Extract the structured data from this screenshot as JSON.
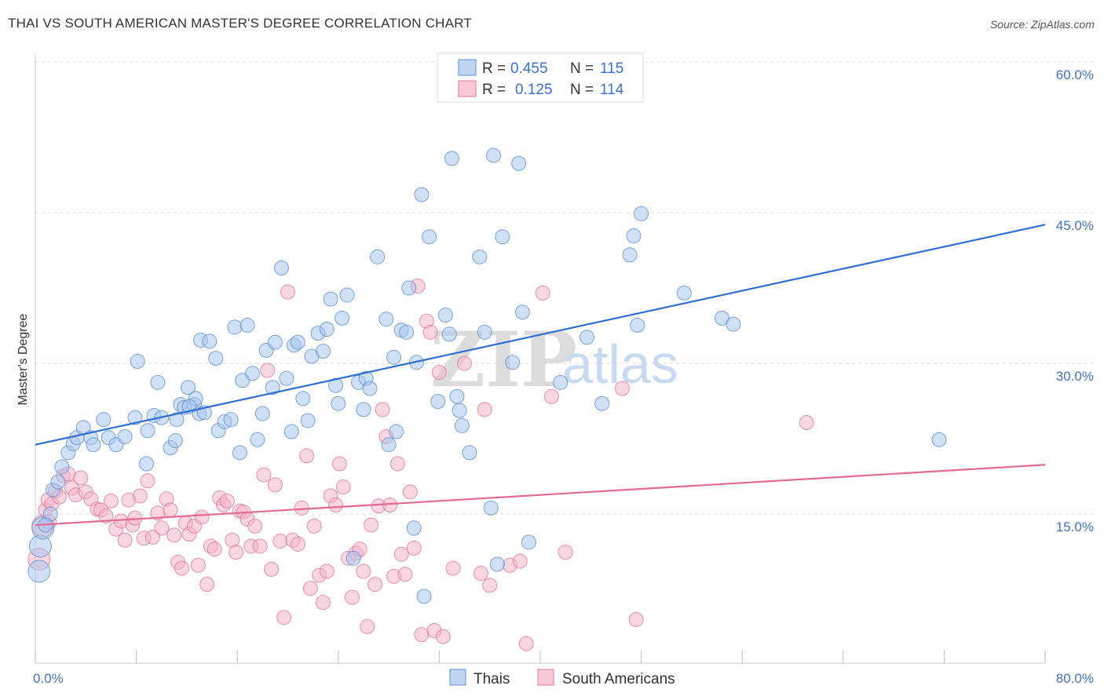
{
  "header": {
    "title": "THAI VS SOUTH AMERICAN MASTER'S DEGREE CORRELATION CHART",
    "source": "Source: ZipAtlas.com"
  },
  "watermark": {
    "zip": "ZIP",
    "atlas": "atlas"
  },
  "legend": {
    "r_label": "R =",
    "n_label": "N =",
    "rows": [
      {
        "r": "0.455",
        "n": "115",
        "color": "#a9c7ee"
      },
      {
        "r": "0.125",
        "n": "114",
        "color": "#f5b5c8"
      }
    ]
  },
  "bottom_legend": [
    "Thais",
    "South Americans"
  ],
  "colors": {
    "thai_fill": "#a9c7ee",
    "thai_stroke": "#5b8fd6",
    "thai_line": "#2e6fd1",
    "sa_fill": "#f5b5c8",
    "sa_stroke": "#e07898",
    "sa_line": "#e36a95",
    "grid": "#d8d8d8",
    "axis_text": "#4472c4"
  },
  "chart_data": {
    "type": "scatter",
    "title": "THAI VS SOUTH AMERICAN MASTER'S DEGREE CORRELATION CHART",
    "xlabel": "",
    "ylabel": "Master's Degree",
    "xlim": [
      0,
      80
    ],
    "ylim": [
      0,
      62
    ],
    "x_ticks_labels": [
      "0.0%",
      "80.0%"
    ],
    "y_ticks": [
      15,
      30,
      45,
      60
    ],
    "y_tick_labels": [
      "15.0%",
      "30.0%",
      "45.0%",
      "60.0%"
    ],
    "grid": true,
    "legend_position": "top-center",
    "series": [
      {
        "name": "Thais",
        "r": 0.455,
        "n": 115,
        "trend": {
          "x": [
            0,
            80
          ],
          "y": [
            21.9,
            43.8
          ]
        },
        "points": [
          [
            0.3,
            9.3
          ],
          [
            0.4,
            11.8
          ],
          [
            0.6,
            13.6
          ],
          [
            1.2,
            15.0
          ],
          [
            1.4,
            17.4
          ],
          [
            1.8,
            18.2
          ],
          [
            2.1,
            19.7
          ],
          [
            2.6,
            21.1
          ],
          [
            3.0,
            22.0
          ],
          [
            3.3,
            22.6
          ],
          [
            3.8,
            23.6
          ],
          [
            4.4,
            22.6
          ],
          [
            4.6,
            21.9
          ],
          [
            5.4,
            24.4
          ],
          [
            5.8,
            22.6
          ],
          [
            6.4,
            21.9
          ],
          [
            7.1,
            22.7
          ],
          [
            7.9,
            24.6
          ],
          [
            8.1,
            30.2
          ],
          [
            8.8,
            20.0
          ],
          [
            8.9,
            23.3
          ],
          [
            9.4,
            24.8
          ],
          [
            9.7,
            28.1
          ],
          [
            10.0,
            24.6
          ],
          [
            10.7,
            21.6
          ],
          [
            11.1,
            22.3
          ],
          [
            11.2,
            24.4
          ],
          [
            11.5,
            25.9
          ],
          [
            11.8,
            25.6
          ],
          [
            12.1,
            27.6
          ],
          [
            12.6,
            25.9
          ],
          [
            12.7,
            26.5
          ],
          [
            12.2,
            25.7
          ],
          [
            13.0,
            25.0
          ],
          [
            13.1,
            32.3
          ],
          [
            13.4,
            25.1
          ],
          [
            13.8,
            32.2
          ],
          [
            14.3,
            30.5
          ],
          [
            14.5,
            23.3
          ],
          [
            15.0,
            24.2
          ],
          [
            15.5,
            24.4
          ],
          [
            15.8,
            33.6
          ],
          [
            16.2,
            21.1
          ],
          [
            16.4,
            28.3
          ],
          [
            16.8,
            33.8
          ],
          [
            17.2,
            29.0
          ],
          [
            17.6,
            22.4
          ],
          [
            18.0,
            25.0
          ],
          [
            18.3,
            31.3
          ],
          [
            18.8,
            27.6
          ],
          [
            19.0,
            32.1
          ],
          [
            19.5,
            39.5
          ],
          [
            19.9,
            28.5
          ],
          [
            20.3,
            23.2
          ],
          [
            20.5,
            31.8
          ],
          [
            20.8,
            32.1
          ],
          [
            21.2,
            26.5
          ],
          [
            21.6,
            24.3
          ],
          [
            21.9,
            30.7
          ],
          [
            22.4,
            33.0
          ],
          [
            22.8,
            31.2
          ],
          [
            23.1,
            33.4
          ],
          [
            23.4,
            36.4
          ],
          [
            23.8,
            27.8
          ],
          [
            24.0,
            26.0
          ],
          [
            24.3,
            34.5
          ],
          [
            24.7,
            36.8
          ],
          [
            25.2,
            10.6
          ],
          [
            25.6,
            28.1
          ],
          [
            26.0,
            25.4
          ],
          [
            26.2,
            28.5
          ],
          [
            26.5,
            27.5
          ],
          [
            27.1,
            40.6
          ],
          [
            27.8,
            34.4
          ],
          [
            28.4,
            30.6
          ],
          [
            28.6,
            23.2
          ],
          [
            28.0,
            21.9
          ],
          [
            29.0,
            33.3
          ],
          [
            29.4,
            33.1
          ],
          [
            29.6,
            37.5
          ],
          [
            30.0,
            13.6
          ],
          [
            30.2,
            30.1
          ],
          [
            30.6,
            46.8
          ],
          [
            30.8,
            6.8
          ],
          [
            31.2,
            42.6
          ],
          [
            31.9,
            26.2
          ],
          [
            32.5,
            34.8
          ],
          [
            32.8,
            32.9
          ],
          [
            33.0,
            50.4
          ],
          [
            33.4,
            26.7
          ],
          [
            33.6,
            25.3
          ],
          [
            33.8,
            23.8
          ],
          [
            34.4,
            21.1
          ],
          [
            35.2,
            40.6
          ],
          [
            35.6,
            33.1
          ],
          [
            36.1,
            15.6
          ],
          [
            36.3,
            50.7
          ],
          [
            36.6,
            10.0
          ],
          [
            37.0,
            42.6
          ],
          [
            37.8,
            30.1
          ],
          [
            38.3,
            49.9
          ],
          [
            38.6,
            35.1
          ],
          [
            39.1,
            12.2
          ],
          [
            41.6,
            28.1
          ],
          [
            43.7,
            32.6
          ],
          [
            44.9,
            26.0
          ],
          [
            47.1,
            40.8
          ],
          [
            47.4,
            42.7
          ],
          [
            47.7,
            33.8
          ],
          [
            48.0,
            44.9
          ],
          [
            51.4,
            37.0
          ],
          [
            54.4,
            34.5
          ],
          [
            55.3,
            33.9
          ],
          [
            71.6,
            22.4
          ],
          [
            0.8,
            13.9
          ]
        ]
      },
      {
        "name": "South Americans",
        "r": 0.125,
        "n": 114,
        "trend": {
          "x": [
            0,
            80
          ],
          "y": [
            13.9,
            19.9
          ]
        },
        "points": [
          [
            0.3,
            10.5
          ],
          [
            0.6,
            13.8
          ],
          [
            0.8,
            15.4
          ],
          [
            1.0,
            16.4
          ],
          [
            1.3,
            16.0
          ],
          [
            1.6,
            17.3
          ],
          [
            1.9,
            16.7
          ],
          [
            2.2,
            18.8
          ],
          [
            2.6,
            19.0
          ],
          [
            2.9,
            17.6
          ],
          [
            3.2,
            16.9
          ],
          [
            3.6,
            18.6
          ],
          [
            4.0,
            17.2
          ],
          [
            4.4,
            16.5
          ],
          [
            4.9,
            15.5
          ],
          [
            5.2,
            15.4
          ],
          [
            5.6,
            14.8
          ],
          [
            6.0,
            16.3
          ],
          [
            6.4,
            13.5
          ],
          [
            6.8,
            14.3
          ],
          [
            7.1,
            12.4
          ],
          [
            7.4,
            16.4
          ],
          [
            7.7,
            13.9
          ],
          [
            7.9,
            14.6
          ],
          [
            8.3,
            16.8
          ],
          [
            8.6,
            12.6
          ],
          [
            8.9,
            18.3
          ],
          [
            9.3,
            12.7
          ],
          [
            9.7,
            15.1
          ],
          [
            10.0,
            13.6
          ],
          [
            10.4,
            16.5
          ],
          [
            10.7,
            15.4
          ],
          [
            11.0,
            12.9
          ],
          [
            11.3,
            10.2
          ],
          [
            11.6,
            9.6
          ],
          [
            11.9,
            14.1
          ],
          [
            12.2,
            13.0
          ],
          [
            12.6,
            13.8
          ],
          [
            12.9,
            9.9
          ],
          [
            13.2,
            14.7
          ],
          [
            13.6,
            8.0
          ],
          [
            13.9,
            11.8
          ],
          [
            14.2,
            11.5
          ],
          [
            14.6,
            16.6
          ],
          [
            14.9,
            15.9
          ],
          [
            15.2,
            16.3
          ],
          [
            15.6,
            12.4
          ],
          [
            15.9,
            11.2
          ],
          [
            16.2,
            15.3
          ],
          [
            16.5,
            15.2
          ],
          [
            16.8,
            14.5
          ],
          [
            17.1,
            11.8
          ],
          [
            17.4,
            13.8
          ],
          [
            17.8,
            11.8
          ],
          [
            18.1,
            18.9
          ],
          [
            18.4,
            29.3
          ],
          [
            18.7,
            9.5
          ],
          [
            19.0,
            17.9
          ],
          [
            19.4,
            12.3
          ],
          [
            19.7,
            4.7
          ],
          [
            20.0,
            37.1
          ],
          [
            20.4,
            12.4
          ],
          [
            20.8,
            12.0
          ],
          [
            21.1,
            15.6
          ],
          [
            21.5,
            20.8
          ],
          [
            21.8,
            7.6
          ],
          [
            22.1,
            13.8
          ],
          [
            22.5,
            8.9
          ],
          [
            22.8,
            6.2
          ],
          [
            23.1,
            9.3
          ],
          [
            23.4,
            16.8
          ],
          [
            23.8,
            15.9
          ],
          [
            24.1,
            20.0
          ],
          [
            24.4,
            17.7
          ],
          [
            24.8,
            10.6
          ],
          [
            25.1,
            6.7
          ],
          [
            25.4,
            11.1
          ],
          [
            25.7,
            11.5
          ],
          [
            26.0,
            9.3
          ],
          [
            26.3,
            3.8
          ],
          [
            26.6,
            13.9
          ],
          [
            26.9,
            8.0
          ],
          [
            27.2,
            15.8
          ],
          [
            27.5,
            25.4
          ],
          [
            27.8,
            22.7
          ],
          [
            28.1,
            15.9
          ],
          [
            28.4,
            8.8
          ],
          [
            28.7,
            20.0
          ],
          [
            29.0,
            11.0
          ],
          [
            29.3,
            9.0
          ],
          [
            29.7,
            17.2
          ],
          [
            30.0,
            11.6
          ],
          [
            30.3,
            37.7
          ],
          [
            30.6,
            3.0
          ],
          [
            31.0,
            34.2
          ],
          [
            31.3,
            33.1
          ],
          [
            31.6,
            3.4
          ],
          [
            32.0,
            29.1
          ],
          [
            32.3,
            2.8
          ],
          [
            33.1,
            9.6
          ],
          [
            34.0,
            30.0
          ],
          [
            35.3,
            9.1
          ],
          [
            35.6,
            25.4
          ],
          [
            36.0,
            7.9
          ],
          [
            37.6,
            9.9
          ],
          [
            38.4,
            10.3
          ],
          [
            38.9,
            2.1
          ],
          [
            40.2,
            37.0
          ],
          [
            40.9,
            26.7
          ],
          [
            42.0,
            11.2
          ],
          [
            46.5,
            27.5
          ],
          [
            47.6,
            4.5
          ],
          [
            61.1,
            24.1
          ],
          [
            1.1,
            14.2
          ]
        ]
      }
    ]
  }
}
